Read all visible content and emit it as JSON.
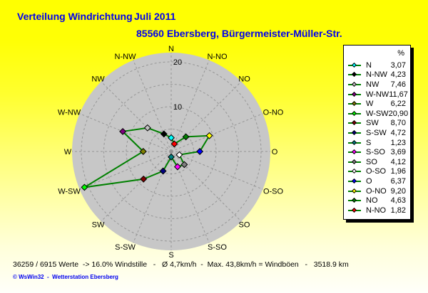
{
  "title": {
    "main": "Verteilung Windrichtung",
    "period": "Juli 2011",
    "station": "85560 Ebersberg, Bürgermeister-Müller-Str."
  },
  "colors": {
    "title_text": "#0000ee",
    "background_top": "#ffff00",
    "background_bottom": "#ffffff",
    "plot_disc": "#c7c7c7",
    "grid": "#969696",
    "series_line": "#008000",
    "label_text": "#000000",
    "legend_bg": "#ffffff",
    "legend_border": "#000000",
    "credit_text": "#0000ee"
  },
  "chart_data": {
    "type": "line",
    "variant": "polar-wind-rose",
    "title": "Verteilung Windrichtung Juli 2011",
    "subtitle": "85560 Ebersberg, Bürgermeister-Müller-Str.",
    "unit": "%",
    "categories": [
      "N",
      "N-NW",
      "NW",
      "W-NW",
      "W",
      "W-SW",
      "SW",
      "S-SW",
      "S",
      "S-SO",
      "SO",
      "O-SO",
      "O",
      "O-NO",
      "NO",
      "N-NO"
    ],
    "values": [
      3.07,
      4.23,
      7.46,
      11.67,
      6.22,
      20.9,
      8.7,
      4.72,
      1.23,
      3.69,
      4.12,
      1.96,
      6.37,
      9.2,
      4.63,
      1.82
    ],
    "point_colors": [
      "#00ffff",
      "#000000",
      "#c0c0c0",
      "#800080",
      "#808000",
      "#00ff00",
      "#800000",
      "#000080",
      "#008080",
      "#ff00ff",
      "#808080",
      "#ffffff",
      "#0000ff",
      "#ffff00",
      "#008000",
      "#ff0000"
    ],
    "line_color": "#008000",
    "radial_ticks": [
      5,
      10,
      15,
      20
    ],
    "radial_tick_labels_shown": [
      "10",
      "20"
    ],
    "rmax": 21.5,
    "start_angle_deg": 90,
    "direction": "counterclockwise",
    "grid": "dashed",
    "legend_position": "right"
  },
  "legend": {
    "header": "%",
    "items": [
      {
        "label": "N",
        "value": "3,07",
        "color": "#00ffff"
      },
      {
        "label": "N-NW",
        "value": "4,23",
        "color": "#000000"
      },
      {
        "label": "NW",
        "value": "7,46",
        "color": "#c0c0c0"
      },
      {
        "label": "W-NW",
        "value": "11,67",
        "color": "#800080"
      },
      {
        "label": "W",
        "value": "6,22",
        "color": "#808000"
      },
      {
        "label": "W-SW",
        "value": "20,90",
        "color": "#00ff00"
      },
      {
        "label": "SW",
        "value": "8,70",
        "color": "#800000"
      },
      {
        "label": "S-SW",
        "value": "4,72",
        "color": "#000080"
      },
      {
        "label": "S",
        "value": "1,23",
        "color": "#008080"
      },
      {
        "label": "S-SO",
        "value": "3,69",
        "color": "#ff00ff"
      },
      {
        "label": "SO",
        "value": "4,12",
        "color": "#808080"
      },
      {
        "label": "O-SO",
        "value": "1,96",
        "color": "#ffffff"
      },
      {
        "label": "O",
        "value": "6,37",
        "color": "#0000ff"
      },
      {
        "label": "O-NO",
        "value": "9,20",
        "color": "#ffff00"
      },
      {
        "label": "NO",
        "value": "4,63",
        "color": "#008000"
      },
      {
        "label": "N-NO",
        "value": "1,82",
        "color": "#ff0000"
      }
    ]
  },
  "status": {
    "line1": "36259 / 6915 Werte  -> 16.0% Windstille   -   Ø 4,7km/h  -  Max. 43,8km/h = Windböen   -   3518.9 km",
    "credit": "© WsWin32  -  Wetterstation Ebersberg"
  }
}
